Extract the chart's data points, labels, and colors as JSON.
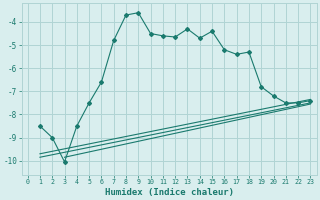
{
  "title": "",
  "xlabel": "Humidex (Indice chaleur)",
  "ylabel": "",
  "bg_color": "#d9eeee",
  "grid_color": "#b0d4d4",
  "line_color": "#1a7a6e",
  "xlim": [
    -0.5,
    23.5
  ],
  "ylim": [
    -10.6,
    -3.2
  ],
  "yticks": [
    -10,
    -9,
    -8,
    -7,
    -6,
    -5,
    -4
  ],
  "xticks": [
    0,
    1,
    2,
    3,
    4,
    5,
    6,
    7,
    8,
    9,
    10,
    11,
    12,
    13,
    14,
    15,
    16,
    17,
    18,
    19,
    20,
    21,
    22,
    23
  ],
  "main_curve_x": [
    1,
    2,
    3,
    4,
    5,
    6,
    7,
    8,
    9,
    10,
    11,
    12,
    13,
    14,
    15,
    16,
    17,
    18,
    19,
    20,
    21,
    22,
    23
  ],
  "main_curve_y": [
    -8.5,
    -9.0,
    -10.05,
    -8.5,
    -7.5,
    -6.6,
    -4.8,
    -3.7,
    -3.6,
    -4.5,
    -4.6,
    -4.65,
    -4.3,
    -4.7,
    -4.4,
    -5.2,
    -5.4,
    -5.3,
    -6.8,
    -7.2,
    -7.5,
    -7.5,
    -7.4
  ],
  "line1_x": [
    1,
    23
  ],
  "line1_y": [
    -9.7,
    -7.35
  ],
  "line2_x": [
    1,
    23
  ],
  "line2_y": [
    -9.85,
    -7.5
  ],
  "line3_x": [
    3,
    23
  ],
  "line3_y": [
    -9.85,
    -7.55
  ]
}
